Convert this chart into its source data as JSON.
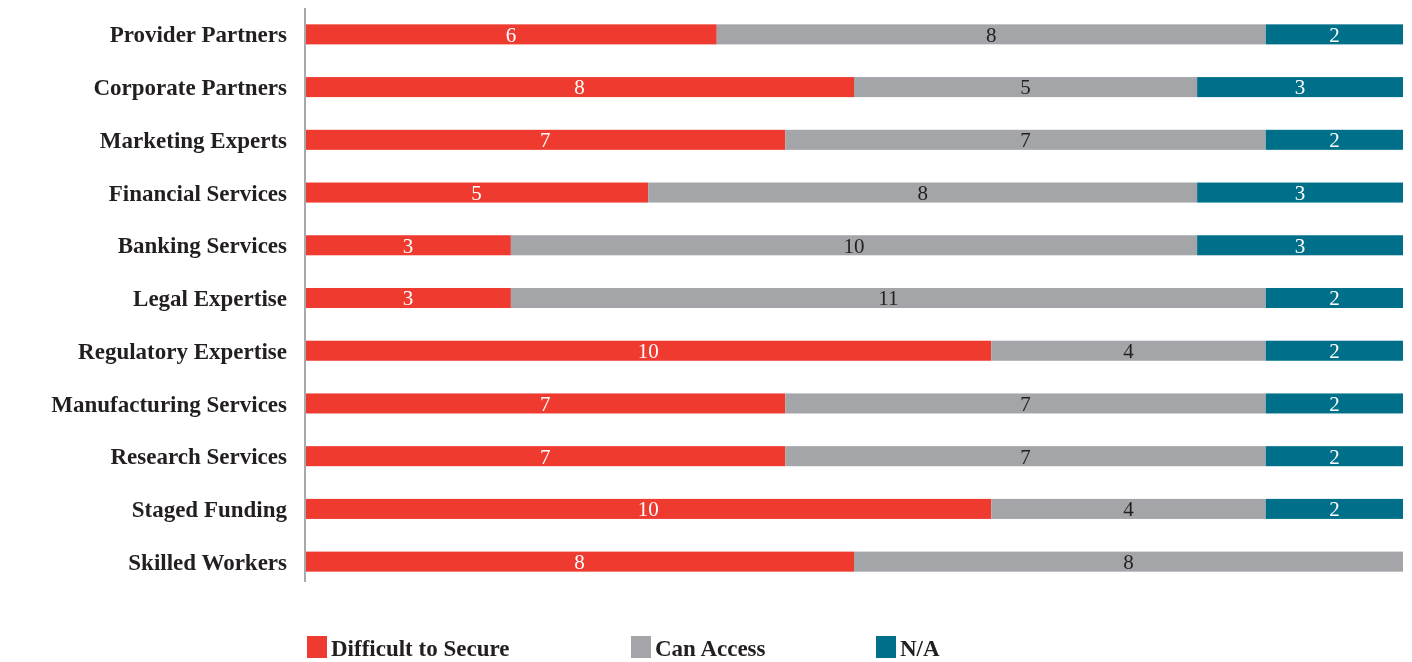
{
  "chart_data": {
    "type": "bar",
    "orientation": "horizontal",
    "stacked": true,
    "data_labels": true,
    "legend": "bottom",
    "categories": [
      "Provider Partners",
      "Corporate Partners",
      "Marketing Experts",
      "Financial Services",
      "Banking Services",
      "Legal Expertise",
      "Regulatory Expertise",
      "Manufacturing Services",
      "Research Services",
      "Staged Funding",
      "Skilled Workers"
    ],
    "series": [
      {
        "name": "Difficult to Secure",
        "color": "#ee3a2f",
        "values": [
          6,
          8,
          7,
          5,
          3,
          3,
          10,
          7,
          7,
          10,
          8
        ]
      },
      {
        "name": "Can Access",
        "color": "#a3a5a8",
        "values": [
          8,
          5,
          7,
          8,
          10,
          11,
          4,
          7,
          7,
          4,
          8
        ]
      },
      {
        "name": "N/A",
        "color": "#00708a",
        "values": [
          2,
          3,
          2,
          3,
          3,
          2,
          2,
          2,
          2,
          2,
          null
        ]
      }
    ]
  }
}
